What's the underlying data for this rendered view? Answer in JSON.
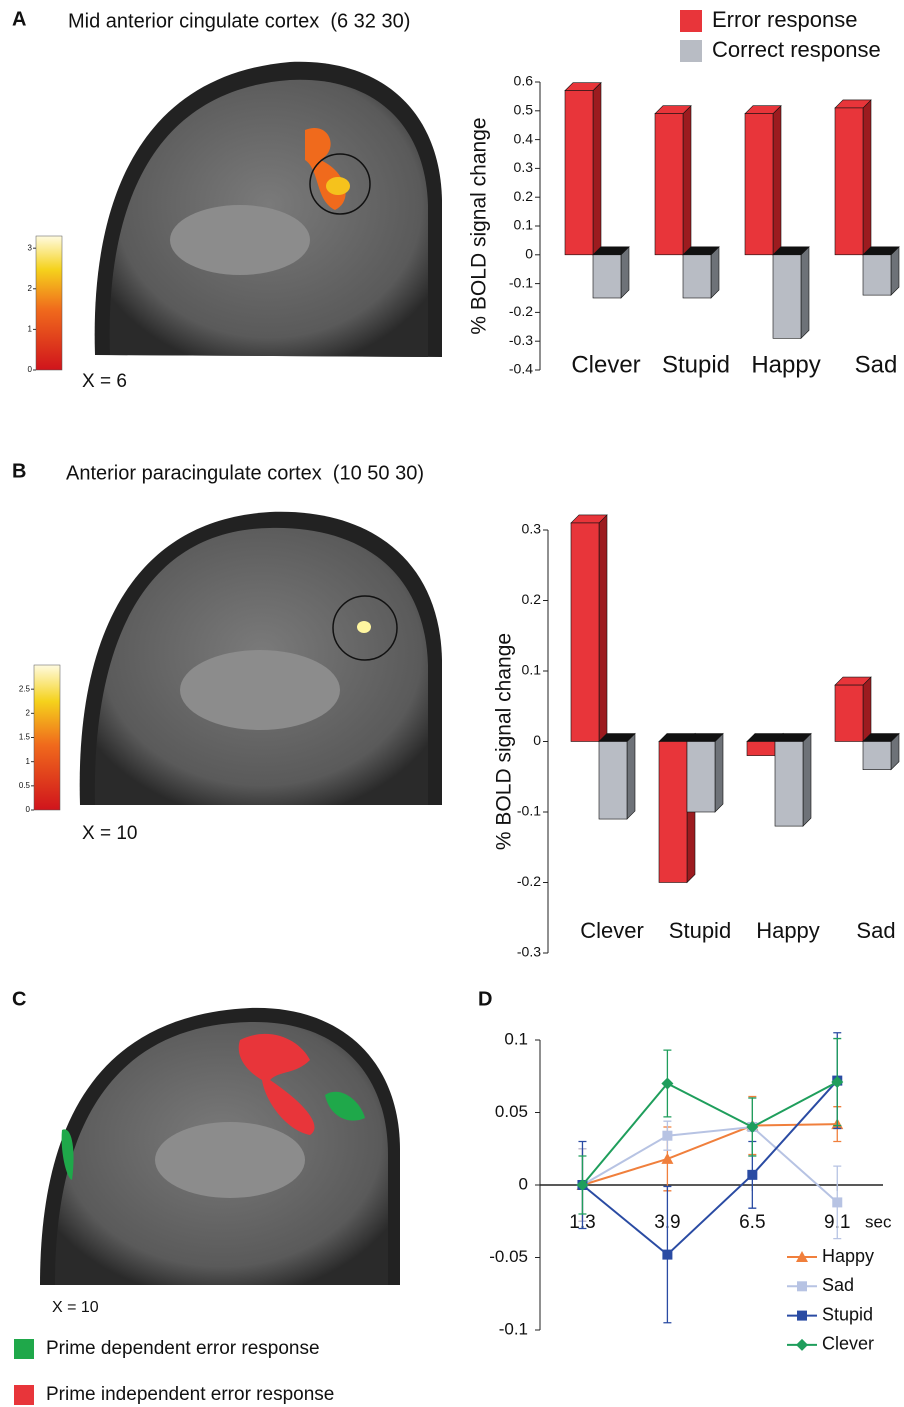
{
  "figure": {
    "panel_labels": [
      "A",
      "B",
      "C",
      "D"
    ],
    "panel_a": {
      "title": "Mid anterior cingulate cortex  (6 32 30)",
      "slice": "X = 6",
      "colorbar": {
        "lim": [
          0,
          3.3
        ],
        "ticks": [
          0,
          1,
          2,
          3
        ]
      }
    },
    "panel_b": {
      "title": "Anterior paracingulate cortex  (10 50 30)",
      "slice": "X = 10",
      "colorbar": {
        "lim": [
          0,
          3
        ],
        "ticks": [
          0,
          0.5,
          1,
          1.5,
          2,
          2.5
        ]
      }
    },
    "panel_c": {
      "slice": "X = 10",
      "legend": [
        {
          "label": "Prime dependent error response",
          "color": "#1fa84a"
        },
        {
          "label": "Prime independent error response",
          "color": "#e8353a"
        }
      ]
    }
  },
  "chart_data": [
    {
      "type": "bar",
      "y_label": "% BOLD signal change",
      "categories": [
        "Clever",
        "Stupid",
        "Happy",
        "Sad"
      ],
      "series": [
        {
          "name": "Error response",
          "color": "#e8353a",
          "values": [
            0.57,
            0.49,
            0.49,
            0.51
          ]
        },
        {
          "name": "Correct response",
          "color": "#b8bcc4",
          "values": [
            -0.15,
            -0.15,
            -0.29,
            -0.14
          ]
        }
      ],
      "ylim": [
        -0.4,
        0.6
      ],
      "yticks": [
        -0.4,
        -0.3,
        -0.2,
        -0.1,
        0,
        0.1,
        0.2,
        0.3,
        0.4,
        0.5,
        0.6
      ]
    },
    {
      "type": "bar",
      "y_label": "% BOLD signal change",
      "categories": [
        "Clever",
        "Stupid",
        "Happy",
        "Sad"
      ],
      "series": [
        {
          "color": "#e8353a",
          "values": [
            0.31,
            -0.2,
            -0.02,
            0.08
          ]
        },
        {
          "color": "#b8bcc4",
          "values": [
            -0.11,
            -0.1,
            -0.12,
            -0.04
          ]
        }
      ],
      "ylim": [
        -0.3,
        0.3
      ],
      "yticks": [
        -0.3,
        -0.2,
        -0.1,
        0,
        0.1,
        0.2,
        0.3
      ]
    },
    {
      "type": "line",
      "x_label": "sec",
      "x": [
        1.3,
        3.9,
        6.5,
        9.1
      ],
      "series": [
        {
          "name": "Happy",
          "color": "#f07f3c",
          "marker": "triangle",
          "values": [
            0,
            0.018,
            0.041,
            0.042
          ],
          "errors": [
            0.025,
            0.022,
            0.02,
            0.012
          ]
        },
        {
          "name": "Sad",
          "color": "#b7c3e3",
          "marker": "square",
          "values": [
            0,
            0.034,
            0.04,
            -0.012
          ],
          "errors": [
            0.025,
            0.01,
            0.02,
            0.025
          ]
        },
        {
          "name": "Stupid",
          "color": "#2a4ba3",
          "marker": "square",
          "values": [
            0,
            -0.048,
            0.007,
            0.072
          ],
          "errors": [
            0.03,
            0.047,
            0.023,
            0.033
          ]
        },
        {
          "name": "Clever",
          "color": "#1f9e5c",
          "marker": "diamond",
          "values": [
            0,
            0.07,
            0.04,
            0.071
          ],
          "errors": [
            0.02,
            0.023,
            0.02,
            0.03
          ]
        }
      ],
      "xlim": [
        0,
        10.5
      ],
      "xticks": [
        1.3,
        3.9,
        6.5,
        9.1
      ],
      "ylim": [
        -0.1,
        0.1
      ],
      "yticks": [
        -0.1,
        -0.05,
        0,
        0.05,
        0.1
      ]
    }
  ]
}
